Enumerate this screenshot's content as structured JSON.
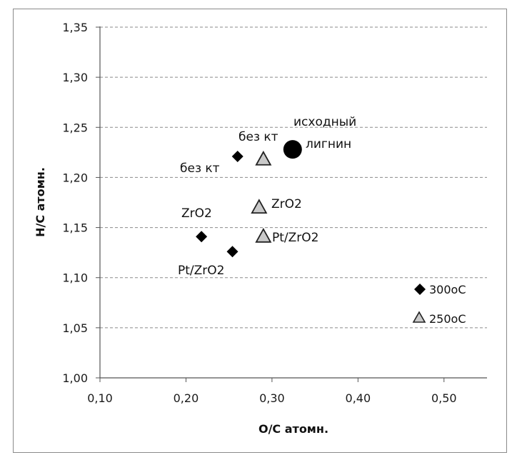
{
  "chart_data": {
    "type": "scatter",
    "xlabel": "O/C атомн.",
    "ylabel": "H/C атомн.",
    "xlim": [
      0.1,
      0.55
    ],
    "ylim": [
      1.0,
      1.35
    ],
    "x_ticks": [
      "0,10",
      "0,20",
      "0,30",
      "0,40",
      "0,50"
    ],
    "y_ticks": [
      "1,00",
      "1,05",
      "1,10",
      "1,15",
      "1,20",
      "1,25",
      "1,30",
      "1,35"
    ],
    "grid": "horizontal-dashed",
    "legend_position": "right",
    "series": [
      {
        "name": "300оС",
        "marker": "diamond",
        "color": "#000000",
        "points": [
          {
            "x": 0.26,
            "y": 1.221,
            "label": "без кт"
          },
          {
            "x": 0.218,
            "y": 1.141,
            "label": "ZrO2"
          },
          {
            "x": 0.254,
            "y": 1.126,
            "label": "Pt/ZrO2"
          }
        ]
      },
      {
        "name": "250оС",
        "marker": "triangle",
        "color": "#c9c9c9",
        "points": [
          {
            "x": 0.29,
            "y": 1.219,
            "label": "без кт"
          },
          {
            "x": 0.285,
            "y": 1.171,
            "label": "ZrO2"
          },
          {
            "x": 0.29,
            "y": 1.142,
            "label": "Pt/ZrO2"
          }
        ]
      },
      {
        "marker": "circle",
        "color": "#000000",
        "points": [
          {
            "x": 0.324,
            "y": 1.228,
            "label": "исходный лигнин"
          }
        ]
      }
    ]
  },
  "annotations": {
    "start_lignin_line1": "исходный",
    "start_lignin_line2": "лигнин",
    "no_cat_300": "без кт",
    "no_cat_250": "без кт",
    "zro2_300": "ZrO2",
    "zro2_250": "ZrO2",
    "pt_300": "Pt/ZrO2",
    "pt_250": "Pt/ZrO2"
  },
  "legend": {
    "item_300": "300оС",
    "item_250": "250оС"
  }
}
